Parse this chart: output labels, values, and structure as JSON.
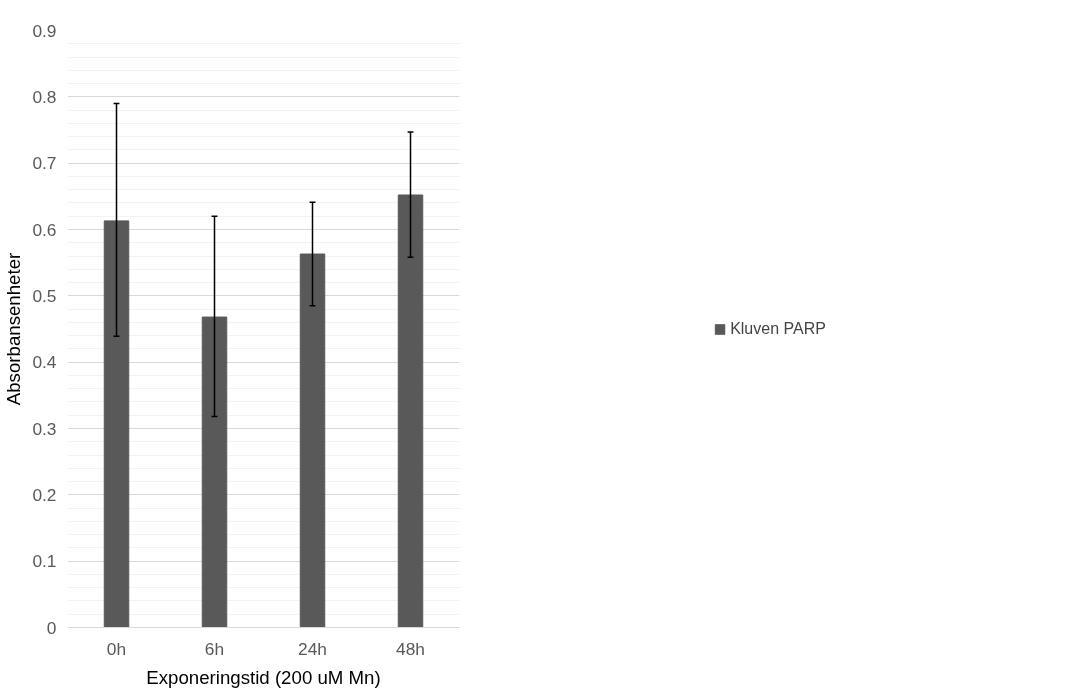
{
  "chart_data": {
    "type": "bar",
    "xlabel": "Exponeringstid (200 uM Mn)",
    "ylabel": "Absorbansenheter",
    "categories": [
      "0h",
      "6h",
      "24h",
      "48h"
    ],
    "series": [
      {
        "name": "Kluven PARP",
        "color": "#595959",
        "values": [
          0.613,
          0.468,
          0.563,
          0.652
        ],
        "errors": [
          [
            0.439,
            0.79
          ],
          [
            0.318,
            0.62
          ],
          [
            0.485,
            0.641
          ],
          [
            0.558,
            0.747
          ]
        ]
      }
    ],
    "ylim": [
      0,
      0.9
    ],
    "yticks": [
      0,
      0.1,
      0.2,
      0.3,
      0.4,
      0.5,
      0.6,
      0.7,
      0.8,
      0.9
    ],
    "grid": "y",
    "legend": "right"
  }
}
